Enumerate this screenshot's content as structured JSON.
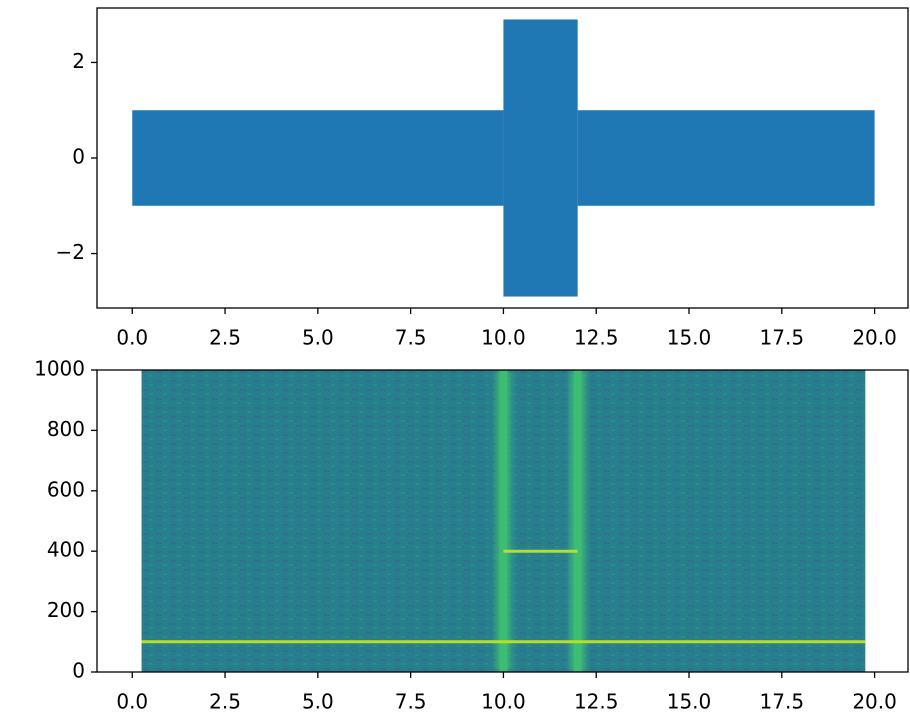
{
  "chart_data": [
    {
      "type": "envelope",
      "bins": [
        0,
        10,
        12,
        20
      ],
      "upper": [
        1,
        2.9,
        1
      ],
      "lower": [
        -1,
        -2.9,
        -1
      ],
      "color": "#1f77b4",
      "xlim": [
        -0.95,
        20.9
      ],
      "ylim": [
        -3.14,
        3.14
      ],
      "xticks": [
        {
          "value": 0,
          "label": "0.0"
        },
        2.5,
        {
          "value": 5,
          "label": "5.0"
        },
        7.5,
        {
          "value": 10,
          "label": "10.0"
        },
        12.5,
        {
          "value": 15,
          "label": "15.0"
        },
        17.5,
        {
          "value": 20,
          "label": "20.0"
        }
      ],
      "yticks": [
        {
          "value": -2,
          "label": "−2"
        },
        0,
        2
      ]
    },
    {
      "type": "spectrogram",
      "extent": [
        0.25,
        19.75
      ],
      "background_color": "#277f8e",
      "tone_color": "#b8de29",
      "click_color": "#3dbc74",
      "tones": [
        {
          "t": [
            0.25,
            19.75
          ],
          "f": 100
        },
        {
          "t": [
            10,
            12
          ],
          "f": 400
        }
      ],
      "clicks": [
        10,
        12
      ],
      "xlim": [
        -0.95,
        20.9
      ],
      "ylim": [
        0,
        1000
      ],
      "xticks": [
        {
          "value": 0,
          "label": "0.0"
        },
        2.5,
        {
          "value": 5,
          "label": "5.0"
        },
        7.5,
        {
          "value": 10,
          "label": "10.0"
        },
        12.5,
        {
          "value": 15,
          "label": "15.0"
        },
        17.5,
        {
          "value": 20,
          "label": "20.0"
        }
      ],
      "yticks": [
        0,
        200,
        400,
        600,
        800,
        1000
      ]
    }
  ]
}
